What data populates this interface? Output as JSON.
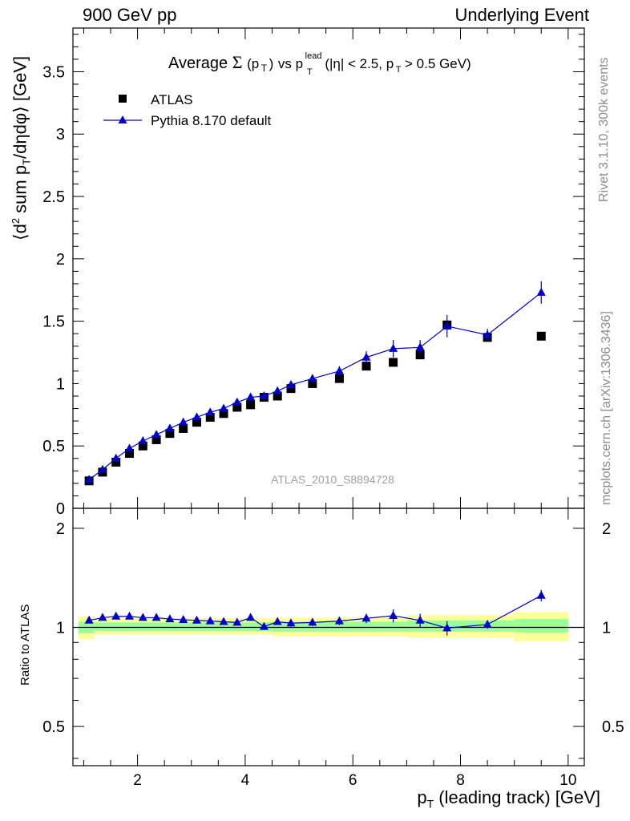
{
  "header": {
    "left": "900 GeV pp",
    "right": "Underlying Event"
  },
  "side_labels": {
    "rivet": "Rivet 3.1.10,  300k events",
    "mcplots": "mcplots.cern.ch [arXiv:1306.3436]"
  },
  "chart_data": [
    {
      "type": "scatter",
      "panel": "main",
      "title_parts": {
        "prefix": "Average",
        "sigma": "Σ",
        "arg": "(p",
        "arg_sub": "T",
        "arg_close": ")",
        "vs": "vs p",
        "vs_sup": "lead",
        "vs_sub": "T",
        "cut1": "(|η| < 2.5, p",
        "cut_sub": "T",
        "cut2": "> 0.5 GeV)"
      },
      "ylabel_parts": {
        "a": "⟨d",
        "a_sup": "2",
        "b": "sum p",
        "b_sub": "T",
        "c": "/dηdφ⟩ [GeV]"
      },
      "watermark": "ATLAS_2010_S8894728",
      "xlim": [
        0.8,
        10.3
      ],
      "ylim": [
        0,
        3.85
      ],
      "xticks": [
        "2",
        "4",
        "6",
        "8",
        "10"
      ],
      "yticks": [
        "0",
        "0.5",
        "1",
        "1.5",
        "2",
        "2.5",
        "3",
        "3.5"
      ],
      "legend_placement": "top-left",
      "series": [
        {
          "name": "ATLAS",
          "style": "square-markers",
          "color": "#000000",
          "x": [
            1.1,
            1.35,
            1.6,
            1.85,
            2.1,
            2.35,
            2.6,
            2.85,
            3.1,
            3.35,
            3.6,
            3.85,
            4.1,
            4.35,
            4.6,
            4.85,
            5.25,
            5.75,
            6.25,
            6.75,
            7.25,
            7.75,
            8.5,
            9.5
          ],
          "y": [
            0.22,
            0.29,
            0.37,
            0.44,
            0.5,
            0.55,
            0.6,
            0.64,
            0.69,
            0.73,
            0.76,
            0.81,
            0.83,
            0.89,
            0.9,
            0.96,
            1.0,
            1.04,
            1.14,
            1.17,
            1.23,
            1.47,
            1.37,
            1.38
          ]
        },
        {
          "name": "Pythia 8.170 default",
          "style": "line-triangles",
          "color": "#0000cc",
          "x": [
            1.1,
            1.35,
            1.6,
            1.85,
            2.1,
            2.35,
            2.6,
            2.85,
            3.1,
            3.35,
            3.6,
            3.85,
            4.1,
            4.35,
            4.6,
            4.85,
            5.25,
            5.75,
            6.25,
            6.75,
            7.25,
            7.75,
            8.5,
            9.5
          ],
          "y": [
            0.23,
            0.31,
            0.4,
            0.48,
            0.54,
            0.59,
            0.64,
            0.69,
            0.73,
            0.77,
            0.8,
            0.85,
            0.89,
            0.9,
            0.94,
            0.99,
            1.04,
            1.1,
            1.21,
            1.28,
            1.29,
            1.46,
            1.39,
            1.73
          ],
          "yerr": [
            0,
            0,
            0,
            0,
            0,
            0,
            0,
            0,
            0,
            0,
            0,
            0,
            0,
            0,
            0,
            0.03,
            0.03,
            0.04,
            0.05,
            0.07,
            0.06,
            0.09,
            0.05,
            0.09
          ]
        }
      ]
    },
    {
      "type": "scatter",
      "panel": "ratio",
      "ylabel": "Ratio to ATLAS",
      "xlabel_parts": {
        "a": "p",
        "a_sub": "T",
        "b": "(leading track) [GeV]"
      },
      "xlim": [
        0.8,
        10.3
      ],
      "ylim": [
        0.38,
        2.3
      ],
      "xticks": [
        "2",
        "4",
        "6",
        "8",
        "10"
      ],
      "yticks": [
        "0.5",
        "1",
        "2"
      ],
      "reference_line": 1,
      "bands": {
        "inner_color": "#99ff99",
        "outer_color": "#ffff99",
        "bins": [
          {
            "x0": 0.9,
            "x1": 1.2,
            "inner": [
              0.96,
              1.04
            ],
            "outer": [
              0.92,
              1.08
            ]
          },
          {
            "x0": 1.2,
            "x1": 4.5,
            "inner": [
              0.975,
              1.035
            ],
            "outer": [
              0.95,
              1.065
            ]
          },
          {
            "x0": 4.5,
            "x1": 7.0,
            "inner": [
              0.97,
              1.04
            ],
            "outer": [
              0.94,
              1.07
            ]
          },
          {
            "x0": 7.0,
            "x1": 9.0,
            "inner": [
              0.97,
              1.05
            ],
            "outer": [
              0.93,
              1.09
            ]
          },
          {
            "x0": 9.0,
            "x1": 10.0,
            "inner": [
              0.965,
              1.06
            ],
            "outer": [
              0.905,
              1.11
            ]
          }
        ]
      },
      "series": [
        {
          "name": "Pythia 8.170 default",
          "color": "#0000cc",
          "x": [
            1.1,
            1.35,
            1.6,
            1.85,
            2.1,
            2.35,
            2.6,
            2.85,
            3.1,
            3.35,
            3.6,
            3.85,
            4.1,
            4.35,
            4.6,
            4.85,
            5.25,
            5.75,
            6.25,
            6.75,
            7.25,
            7.75,
            8.5,
            9.5
          ],
          "y": [
            1.05,
            1.07,
            1.08,
            1.08,
            1.07,
            1.07,
            1.06,
            1.055,
            1.05,
            1.045,
            1.04,
            1.035,
            1.07,
            1.005,
            1.04,
            1.03,
            1.035,
            1.045,
            1.065,
            1.085,
            1.05,
            0.995,
            1.02,
            1.25
          ],
          "yerr": [
            0,
            0,
            0,
            0,
            0,
            0,
            0,
            0,
            0,
            0,
            0,
            0,
            0,
            0,
            0.02,
            0.025,
            0.025,
            0.03,
            0.035,
            0.05,
            0.05,
            0.05,
            0.03,
            0.05
          ]
        }
      ]
    }
  ]
}
